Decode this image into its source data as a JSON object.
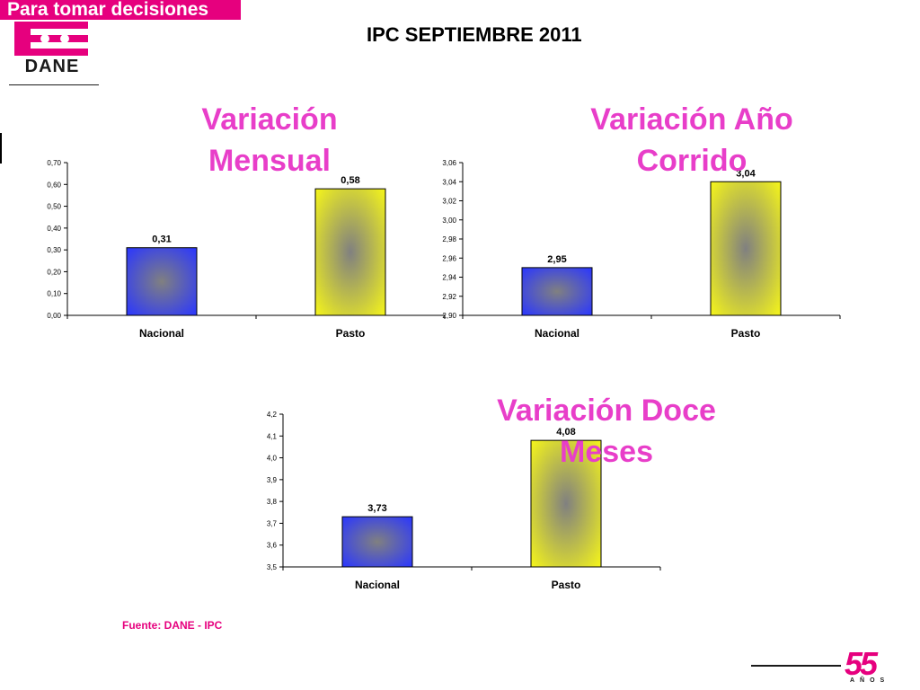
{
  "header": {
    "banner_text": "Para tomar decisiones",
    "logo_text": "DANE",
    "title": "IPC SEPTIEMBRE 2011"
  },
  "colors": {
    "brand_magenta": "#e6007e",
    "chart_title": "#e83ec9",
    "nacional_bar": "#2a36ff",
    "pasto_bar": "#f5f51a",
    "bar_center": "#808080"
  },
  "footer": {
    "source": "Fuente: DANE - IPC",
    "anniversary_number": "55",
    "anniversary_text": "AÑOS"
  },
  "chart_data": [
    {
      "type": "bar",
      "title": "Variación Mensual",
      "categories": [
        "Nacional",
        "Pasto"
      ],
      "values": [
        0.31,
        0.58
      ],
      "value_labels": [
        "0,31",
        "0,58"
      ],
      "ylim": [
        0,
        0.7
      ],
      "yticks": [
        "0,00",
        "0,10",
        "0,20",
        "0,30",
        "0,40",
        "0,50",
        "0,60",
        "0,70"
      ],
      "grid": false,
      "legend": false
    },
    {
      "type": "bar",
      "title": "Variación Año Corrido",
      "categories": [
        "Nacional",
        "Pasto"
      ],
      "values": [
        2.95,
        3.04
      ],
      "value_labels": [
        "2,95",
        "3,04"
      ],
      "ylim": [
        2.9,
        3.06
      ],
      "yticks": [
        "2,90",
        "2,92",
        "2,94",
        "2,96",
        "2,98",
        "3,00",
        "3,02",
        "3,04",
        "3,06"
      ],
      "grid": false,
      "legend": false
    },
    {
      "type": "bar",
      "title": "Variación Doce Meses",
      "categories": [
        "Nacional",
        "Pasto"
      ],
      "values": [
        3.73,
        4.08
      ],
      "value_labels": [
        "3,73",
        "4,08"
      ],
      "ylim": [
        3.5,
        4.2
      ],
      "yticks": [
        "3,5",
        "3,6",
        "3,7",
        "3,8",
        "3,9",
        "4,0",
        "4,1",
        "4,2"
      ],
      "grid": false,
      "legend": false
    }
  ]
}
